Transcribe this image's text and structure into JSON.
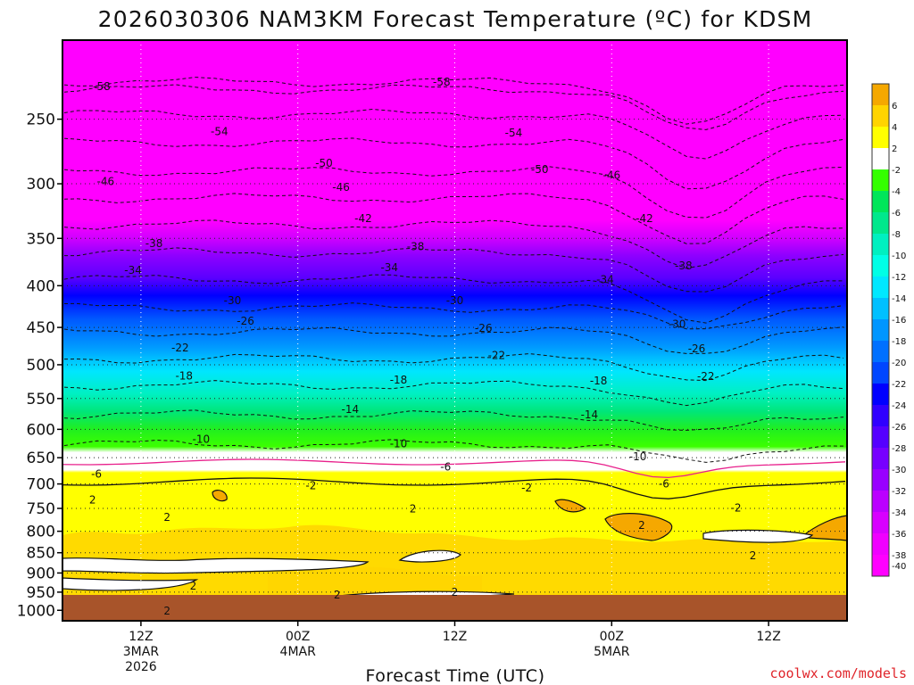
{
  "chart_data": {
    "type": "heatmap",
    "title": "2026030306 NAM3KM Forecast Temperature (ºC) for KDSM",
    "xlabel": "Forecast Time (UTC)",
    "ylabel": "",
    "credit": "coolwx.com/models",
    "y_axis": {
      "unit": "hPa",
      "scale": "log-pressure",
      "range": [
        1030,
        200
      ],
      "ticks": [
        "250",
        "300",
        "350",
        "400",
        "450",
        "500",
        "550",
        "600",
        "650",
        "700",
        "750",
        "800",
        "850",
        "900",
        "950",
        "1000"
      ]
    },
    "x_axis": {
      "range_hours": [
        0,
        60
      ],
      "ticks": [
        {
          "hour": 6,
          "lines": [
            "12Z",
            "3MAR",
            "2026"
          ]
        },
        {
          "hour": 18,
          "lines": [
            "00Z",
            "4MAR"
          ]
        },
        {
          "hour": 30,
          "lines": [
            "12Z"
          ]
        },
        {
          "hour": 42,
          "lines": [
            "00Z",
            "5MAR"
          ]
        },
        {
          "hour": 54,
          "lines": [
            "12Z"
          ]
        }
      ]
    },
    "grid": true,
    "colorbar": {
      "levels": [
        "6",
        "4",
        "2",
        "-2",
        "-4",
        "-6",
        "-8",
        "-10",
        "-12",
        "-14",
        "-16",
        "-18",
        "-20",
        "-22",
        "-24",
        "-26",
        "-28",
        "-30",
        "-32",
        "-34",
        "-36",
        "-38",
        "-40"
      ],
      "colors": [
        "#f5a800",
        "#ffd400",
        "#ffff00",
        "#ffffff",
        "#34ff00",
        "#00e65a",
        "#00e88c",
        "#00f0c0",
        "#00ffe6",
        "#00e8ff",
        "#00c0ff",
        "#0096ff",
        "#0070ff",
        "#0046ff",
        "#0000ff",
        "#3000ff",
        "#5500ff",
        "#7700ff",
        "#9900ff",
        "#bb00ff",
        "#d800ff",
        "#f000ff",
        "#ff00ff"
      ]
    },
    "contour_labels": [
      {
        "hour": 3,
        "p": 228,
        "label": "-58"
      },
      {
        "hour": 29,
        "p": 225,
        "label": "-58"
      },
      {
        "hour": 12,
        "p": 259,
        "label": "-54"
      },
      {
        "hour": 34.5,
        "p": 260,
        "label": "-54"
      },
      {
        "hour": 20,
        "p": 283,
        "label": "-50"
      },
      {
        "hour": 36.5,
        "p": 288,
        "label": "-50"
      },
      {
        "hour": 3.3,
        "p": 298,
        "label": "-46"
      },
      {
        "hour": 21.3,
        "p": 303,
        "label": "-46"
      },
      {
        "hour": 42,
        "p": 293,
        "label": "-46"
      },
      {
        "hour": 23,
        "p": 331,
        "label": "-42"
      },
      {
        "hour": 44.5,
        "p": 331,
        "label": "-42"
      },
      {
        "hour": 7,
        "p": 355,
        "label": "-38"
      },
      {
        "hour": 27,
        "p": 358,
        "label": "-38"
      },
      {
        "hour": 47.5,
        "p": 378,
        "label": "-38"
      },
      {
        "hour": 5.4,
        "p": 383,
        "label": "-34"
      },
      {
        "hour": 25,
        "p": 380,
        "label": "-34"
      },
      {
        "hour": 41.5,
        "p": 393,
        "label": "-34"
      },
      {
        "hour": 13,
        "p": 417,
        "label": "-30"
      },
      {
        "hour": 30,
        "p": 417,
        "label": "-30"
      },
      {
        "hour": 47,
        "p": 446,
        "label": "-30"
      },
      {
        "hour": 14,
        "p": 442,
        "label": "-26"
      },
      {
        "hour": 32.2,
        "p": 451,
        "label": "-26"
      },
      {
        "hour": 48.5,
        "p": 478,
        "label": "-26"
      },
      {
        "hour": 9,
        "p": 477,
        "label": "-22"
      },
      {
        "hour": 33.2,
        "p": 487,
        "label": "-22"
      },
      {
        "hour": 49.2,
        "p": 517,
        "label": "-22"
      },
      {
        "hour": 9.3,
        "p": 516,
        "label": "-18"
      },
      {
        "hour": 25.7,
        "p": 522,
        "label": "-18"
      },
      {
        "hour": 41,
        "p": 523,
        "label": "-18"
      },
      {
        "hour": 22,
        "p": 567,
        "label": "-14"
      },
      {
        "hour": 40.3,
        "p": 576,
        "label": "-14"
      },
      {
        "hour": 10.6,
        "p": 617,
        "label": "-10"
      },
      {
        "hour": 25.7,
        "p": 625,
        "label": "-10"
      },
      {
        "hour": 44,
        "p": 648,
        "label": "-10"
      },
      {
        "hour": 2.6,
        "p": 681,
        "label": "-6"
      },
      {
        "hour": 29.3,
        "p": 667,
        "label": "-6"
      },
      {
        "hour": 46,
        "p": 700,
        "label": "-6"
      },
      {
        "hour": 2.3,
        "p": 732,
        "label": "2"
      },
      {
        "hour": 19,
        "p": 703,
        "label": "-2"
      },
      {
        "hour": 35.5,
        "p": 708,
        "label": "-2"
      },
      {
        "hour": 51.5,
        "p": 749,
        "label": "-2"
      },
      {
        "hour": 8,
        "p": 769,
        "label": "2"
      },
      {
        "hour": 26.8,
        "p": 751,
        "label": "2"
      },
      {
        "hour": 44.3,
        "p": 787,
        "label": "2"
      },
      {
        "hour": 52.8,
        "p": 857,
        "label": "2"
      },
      {
        "hour": 10,
        "p": 934,
        "label": "2"
      },
      {
        "hour": 21,
        "p": 958,
        "label": "2"
      },
      {
        "hour": 30,
        "p": 950,
        "label": "2"
      },
      {
        "hour": 8,
        "p": 1002,
        "label": "2"
      }
    ]
  }
}
